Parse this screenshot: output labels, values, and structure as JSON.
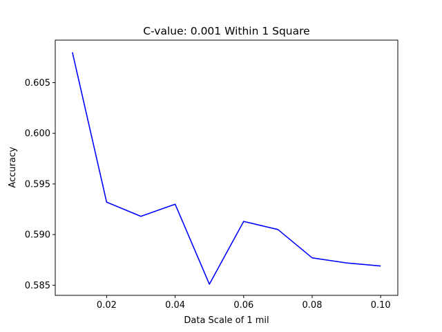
{
  "chart_data": {
    "type": "line",
    "title": "C-value: 0.001 Within 1 Square",
    "xlabel": "Data Scale of 1 mil",
    "ylabel": "Accuracy",
    "xlim": [
      0.005,
      0.105
    ],
    "ylim": [
      0.584,
      0.6092
    ],
    "xticks": [
      0.02,
      0.04,
      0.06,
      0.08,
      0.1
    ],
    "xtick_labels": [
      "0.02",
      "0.04",
      "0.06",
      "0.08",
      "0.10"
    ],
    "yticks": [
      0.585,
      0.59,
      0.595,
      0.6,
      0.605
    ],
    "ytick_labels": [
      "0.585",
      "0.590",
      "0.595",
      "0.600",
      "0.605"
    ],
    "grid": false,
    "series": [
      {
        "color": "#0000ff",
        "x": [
          0.01,
          0.02,
          0.03,
          0.04,
          0.05,
          0.06,
          0.07,
          0.08,
          0.09,
          0.1
        ],
        "y": [
          0.608,
          0.5932,
          0.5918,
          0.593,
          0.5851,
          0.5913,
          0.5905,
          0.5877,
          0.5872,
          0.5869
        ]
      }
    ]
  }
}
